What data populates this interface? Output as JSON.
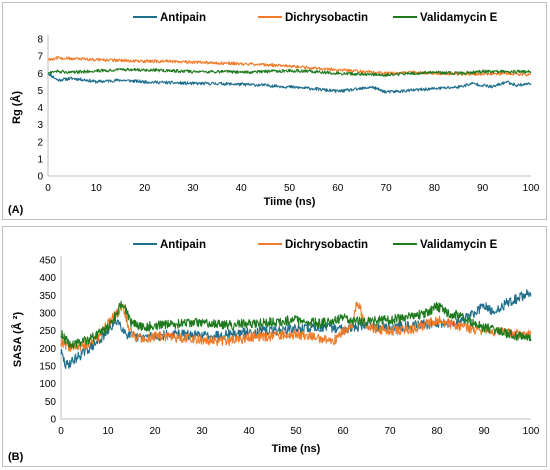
{
  "colors": {
    "Antipain": "#1f6e8c",
    "Dichrysobactin": "#f07c2a",
    "Validamycin E": "#1e7a1e"
  },
  "chart_data": [
    {
      "panel_label": "(A)",
      "type": "line",
      "xlabel": "Tiime (ns)",
      "ylabel": "Rg (Å)",
      "xlim": [
        0,
        100
      ],
      "ylim": [
        0,
        8
      ],
      "x_ticks": [
        "0",
        "10",
        "20",
        "30",
        "40",
        "50",
        "60",
        "70",
        "80",
        "90",
        "100"
      ],
      "y_ticks": [
        "0",
        "1",
        "2",
        "3",
        "4",
        "5",
        "6",
        "7",
        "8"
      ],
      "grid": false,
      "legend_position": "top",
      "series": [
        {
          "name": "Antipain",
          "x": [
            0,
            2,
            5,
            8,
            10,
            15,
            20,
            25,
            30,
            35,
            40,
            45,
            50,
            55,
            58,
            60,
            62,
            65,
            67,
            70,
            73,
            75,
            80,
            85,
            88,
            90,
            92,
            95,
            97,
            100
          ],
          "y": [
            6.0,
            5.6,
            5.7,
            5.6,
            5.5,
            5.6,
            5.5,
            5.45,
            5.4,
            5.4,
            5.35,
            5.3,
            5.2,
            5.1,
            5.0,
            4.95,
            5.0,
            5.1,
            5.2,
            4.9,
            4.95,
            5.0,
            5.1,
            5.2,
            5.4,
            5.3,
            5.2,
            5.5,
            5.3,
            5.4
          ]
        },
        {
          "name": "Dichrysobactin",
          "x": [
            0,
            2,
            5,
            10,
            15,
            20,
            25,
            30,
            35,
            40,
            45,
            50,
            55,
            60,
            65,
            70,
            75,
            80,
            85,
            90,
            95,
            100
          ],
          "y": [
            6.8,
            6.9,
            6.85,
            6.8,
            6.75,
            6.7,
            6.7,
            6.65,
            6.6,
            6.55,
            6.5,
            6.4,
            6.3,
            6.2,
            6.1,
            6.0,
            6.05,
            6.0,
            5.95,
            5.95,
            6.0,
            5.9
          ]
        },
        {
          "name": "Validamycin E",
          "x": [
            0,
            2,
            5,
            10,
            15,
            20,
            25,
            30,
            35,
            40,
            45,
            50,
            55,
            60,
            65,
            70,
            75,
            80,
            85,
            90,
            95,
            100
          ],
          "y": [
            6.0,
            6.1,
            6.05,
            6.15,
            6.2,
            6.2,
            6.15,
            6.1,
            6.1,
            6.05,
            6.1,
            6.15,
            6.1,
            6.0,
            5.95,
            5.9,
            6.0,
            6.05,
            6.0,
            6.1,
            6.1,
            6.1
          ]
        }
      ]
    },
    {
      "panel_label": "(B)",
      "type": "line",
      "xlabel": "Time (ns)",
      "ylabel": "SASA (Å ²)",
      "xlim": [
        0,
        100
      ],
      "ylim": [
        0,
        450
      ],
      "x_ticks": [
        "0",
        "10",
        "20",
        "30",
        "40",
        "50",
        "60",
        "70",
        "80",
        "90",
        "100"
      ],
      "y_ticks": [
        "0",
        "50",
        "100",
        "150",
        "200",
        "250",
        "300",
        "350",
        "400",
        "450"
      ],
      "grid": false,
      "legend_position": "top",
      "series": [
        {
          "name": "Antipain",
          "x": [
            0,
            1,
            3,
            5,
            8,
            10,
            12,
            14,
            16,
            20,
            25,
            30,
            35,
            40,
            45,
            50,
            55,
            60,
            65,
            70,
            75,
            80,
            85,
            88,
            90,
            92,
            95,
            97,
            100
          ],
          "y": [
            190,
            150,
            170,
            190,
            220,
            250,
            280,
            240,
            230,
            235,
            240,
            235,
            240,
            245,
            250,
            255,
            260,
            255,
            265,
            260,
            265,
            270,
            275,
            300,
            320,
            300,
            330,
            340,
            360
          ]
        },
        {
          "name": "Dichrysobactin",
          "x": [
            0,
            2,
            5,
            8,
            10,
            12,
            13,
            15,
            18,
            20,
            25,
            30,
            35,
            40,
            45,
            50,
            55,
            58,
            60,
            62,
            63,
            65,
            70,
            75,
            80,
            85,
            90,
            95,
            100
          ],
          "y": [
            220,
            200,
            210,
            230,
            270,
            300,
            320,
            240,
            225,
            235,
            230,
            225,
            220,
            230,
            235,
            240,
            230,
            220,
            250,
            260,
            340,
            260,
            250,
            255,
            280,
            260,
            250,
            245,
            240
          ]
        },
        {
          "name": "Validamycin E",
          "x": [
            0,
            2,
            5,
            8,
            10,
            12,
            13,
            15,
            18,
            20,
            25,
            30,
            35,
            40,
            45,
            50,
            55,
            60,
            65,
            70,
            75,
            78,
            80,
            82,
            85,
            90,
            95,
            100
          ],
          "y": [
            240,
            210,
            220,
            240,
            260,
            300,
            330,
            270,
            260,
            265,
            270,
            275,
            265,
            270,
            275,
            280,
            270,
            285,
            275,
            280,
            290,
            300,
            320,
            300,
            290,
            260,
            240,
            230
          ]
        }
      ]
    }
  ]
}
